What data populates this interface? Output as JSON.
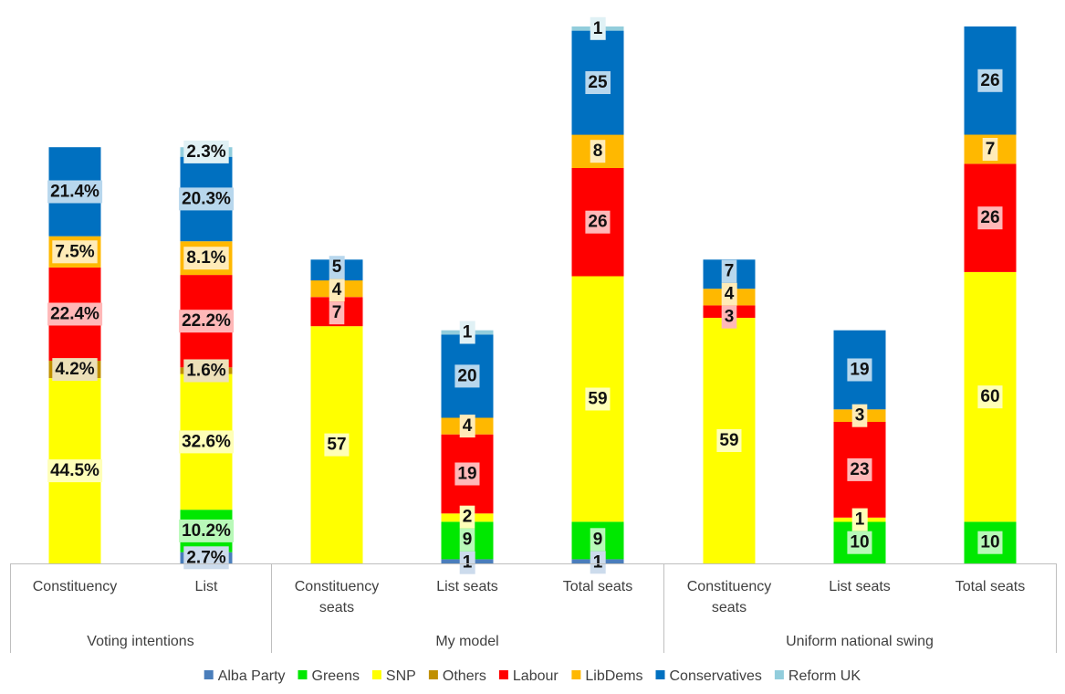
{
  "chart_data": {
    "type": "bar",
    "stacked": true,
    "legend_position": "bottom",
    "grid": false,
    "series": [
      {
        "name": "Alba Party",
        "color": "#4a7ebb"
      },
      {
        "name": "Greens",
        "color": "#00e800"
      },
      {
        "name": "SNP",
        "color": "#ffff00"
      },
      {
        "name": "Others",
        "color": "#c09000"
      },
      {
        "name": "Labour",
        "color": "#ff0000"
      },
      {
        "name": "LibDems",
        "color": "#ffb800"
      },
      {
        "name": "Conservatives",
        "color": "#0070c0"
      },
      {
        "name": "Reform UK",
        "color": "#92cddc"
      }
    ],
    "groups": [
      {
        "label": "Voting intentions",
        "categories": [
          "Constituency",
          "List"
        ]
      },
      {
        "label": "My model",
        "categories": [
          "Constituency seats",
          "List seats",
          "Total seats"
        ]
      },
      {
        "label": "Uniform national swing",
        "categories": [
          "Constituency seats",
          "List seats",
          "Total seats"
        ]
      }
    ],
    "bars": [
      {
        "group": 0,
        "category": "Constituency",
        "values": [
          0,
          0,
          44.5,
          4.2,
          22.4,
          7.5,
          21.4,
          0
        ],
        "labels": [
          "",
          "",
          "44.5%",
          "4.2%",
          "22.4%",
          "7.5%",
          "21.4%",
          ""
        ]
      },
      {
        "group": 0,
        "category": "List",
        "values": [
          2.7,
          10.2,
          32.6,
          1.6,
          22.2,
          8.1,
          20.3,
          2.3
        ],
        "labels": [
          "2.7%",
          "10.2%",
          "32.6%",
          "1.6%",
          "22.2%",
          "8.1%",
          "20.3%",
          "2.3%"
        ]
      },
      {
        "group": 1,
        "category": "Constituency seats",
        "values": [
          0,
          0,
          57,
          0,
          7,
          4,
          5,
          0
        ],
        "labels": [
          "",
          "",
          "57",
          "",
          "7",
          "4",
          "5",
          ""
        ]
      },
      {
        "group": 1,
        "category": "List seats",
        "values": [
          1,
          9,
          2,
          0,
          19,
          4,
          20,
          1
        ],
        "labels": [
          "1",
          "9",
          "2",
          "",
          "19",
          "4",
          "20",
          "1"
        ]
      },
      {
        "group": 1,
        "category": "Total seats",
        "values": [
          1,
          9,
          59,
          0,
          26,
          8,
          25,
          1
        ],
        "labels": [
          "1",
          "9",
          "59",
          "",
          "26",
          "8",
          "25",
          "1"
        ]
      },
      {
        "group": 2,
        "category": "Constituency seats",
        "values": [
          0,
          0,
          59,
          0,
          3,
          4,
          7,
          0
        ],
        "labels": [
          "",
          "",
          "59",
          "",
          "3",
          "4",
          "7",
          ""
        ]
      },
      {
        "group": 2,
        "category": "List seats",
        "values": [
          0,
          10,
          1,
          0,
          23,
          3,
          19,
          0
        ],
        "labels": [
          "",
          "10",
          "1",
          "",
          "23",
          "3",
          "19",
          ""
        ]
      },
      {
        "group": 2,
        "category": "Total seats",
        "values": [
          0,
          10,
          60,
          0,
          26,
          7,
          26,
          0
        ],
        "labels": [
          "",
          "10",
          "60",
          "",
          "26",
          "7",
          "26",
          ""
        ]
      }
    ]
  }
}
